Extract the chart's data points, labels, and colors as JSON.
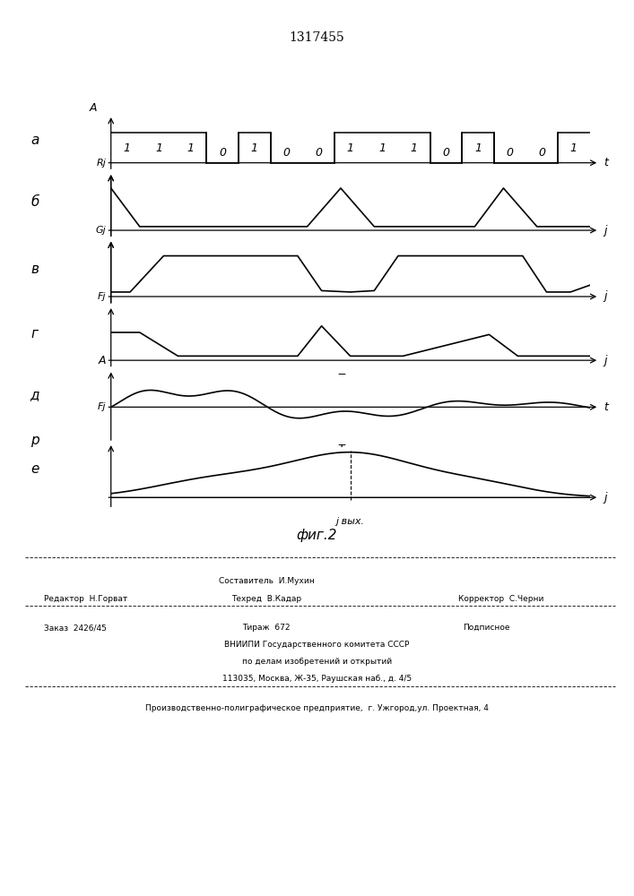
{
  "title": "1317455",
  "background_color": "#ffffff",
  "panel_labels": [
    "а",
    "б",
    "в",
    "г",
    "д",
    "е"
  ],
  "side_label_р": "р",
  "fig_caption": "фиг.2",
  "bits": [
    1,
    1,
    1,
    0,
    1,
    0,
    0,
    1,
    1,
    1,
    0,
    1,
    0,
    0,
    1
  ],
  "footer": {
    "line1_center": "Составитель  И.Мухин",
    "line2_left": "Редактор  Н.Горват",
    "line2_mid": "Техред  В.Кадар",
    "line2_right": "Корректор  С.Черни",
    "line3_left": "Заказ  2426/45",
    "line3_mid": "Тираж  672",
    "line3_right": "Подписное",
    "line4": "ВНИИПИ Государственного комитета СССР",
    "line5": "по делам изобретений и открытий",
    "line6": "113035, Москва, Ж-35, Раушская наб., д. 4/5",
    "line7": "Производственно-полиграфическое предприятие,  г. Ужгород,ул. Проектная, 4"
  }
}
